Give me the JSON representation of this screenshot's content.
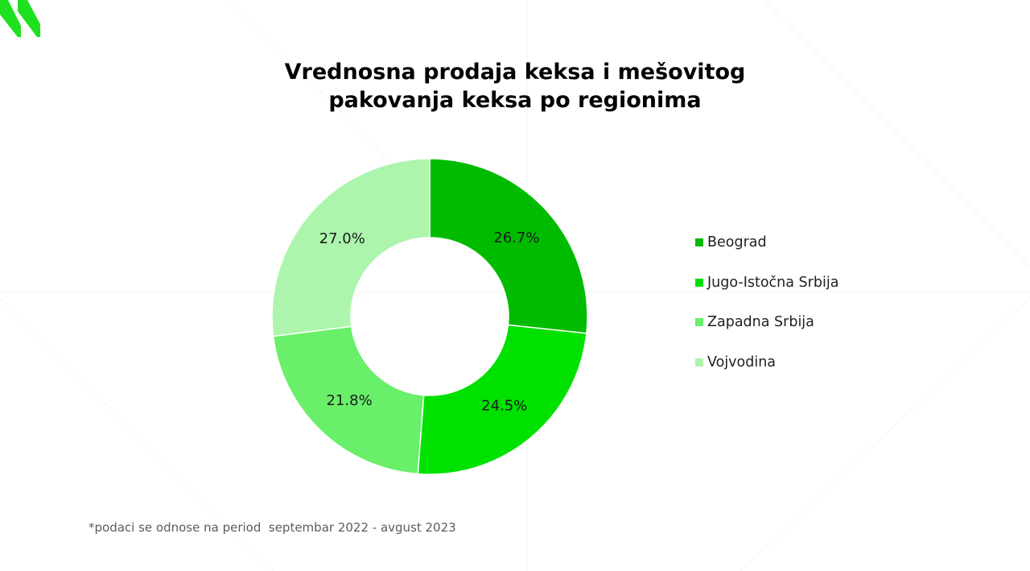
{
  "colors": {
    "beograd": "#00bb00",
    "jugo_istocna": "#00e100",
    "zapadna": "#69ef69",
    "vojvodina": "#adf5ad",
    "logo": "#1fe01f"
  },
  "logo": {
    "icon": "brand-chevron-logo"
  },
  "footnote": "*podaci se odnose na period  septembar 2022 - avgust 2023",
  "chart_data": {
    "type": "pie",
    "variant": "donut",
    "title": "Vrednosna prodaja keksa i mešovitog pakovanja keksa po regionima",
    "legend_position": "right",
    "start_angle": "12 o'clock",
    "direction": "clockwise",
    "categories": [
      "Beograd",
      "Jugo-Istočna Srbija",
      "Zapadna Srbija",
      "Vojvodina"
    ],
    "values": [
      26.7,
      24.5,
      21.8,
      27.0
    ],
    "value_labels": [
      "26.7%",
      "24.5%",
      "21.8%",
      "27.0%"
    ],
    "unit": "%"
  }
}
